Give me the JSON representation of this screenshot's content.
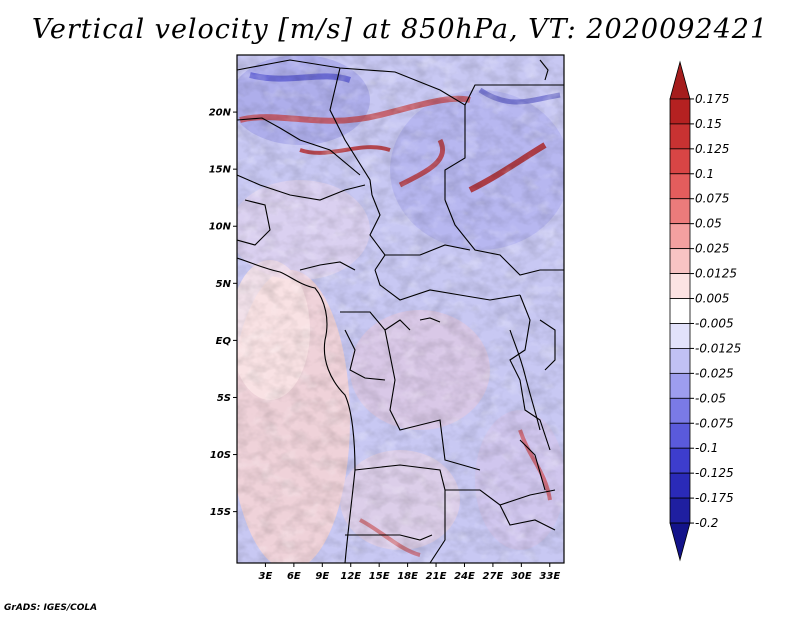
{
  "title": "Vertical velocity [m/s] at 850hPa, VT: 2020092421",
  "footer": "GrADS: IGES/COLA",
  "map": {
    "lat_labels": [
      "20N",
      "15N",
      "10N",
      "5N",
      "EQ",
      "5S",
      "10S",
      "15S"
    ],
    "lat_values": [
      20,
      15,
      10,
      5,
      0,
      -5,
      -10,
      -15
    ],
    "lon_labels": [
      "3E",
      "6E",
      "9E",
      "12E",
      "15E",
      "18E",
      "21E",
      "24E",
      "27E",
      "30E",
      "33E"
    ],
    "lon_values": [
      3,
      6,
      9,
      12,
      15,
      18,
      21,
      24,
      27,
      30,
      33
    ],
    "lon_range": [
      0,
      34.5
    ],
    "lat_range": [
      -19.5,
      25
    ]
  },
  "colorbar": {
    "labels": [
      "0.175",
      "0.15",
      "0.125",
      "0.1",
      "0.075",
      "0.05",
      "0.025",
      "0.0125",
      "0.005",
      "-0.005",
      "-0.0125",
      "-0.025",
      "-0.05",
      "-0.075",
      "-0.1",
      "-0.125",
      "-0.175",
      "-0.2"
    ],
    "colors": [
      "#a51d1d",
      "#b52121",
      "#c83232",
      "#d84545",
      "#e35d5d",
      "#ec7b7b",
      "#f3a0a0",
      "#f8c3c3",
      "#fce3e3",
      "#ffffff",
      "#e2e2fb",
      "#c1c1f5",
      "#9d9def",
      "#7a7ae6",
      "#5a5adb",
      "#3d3dcd",
      "#2a2ab8",
      "#1f1fa0",
      "#13138a"
    ]
  }
}
